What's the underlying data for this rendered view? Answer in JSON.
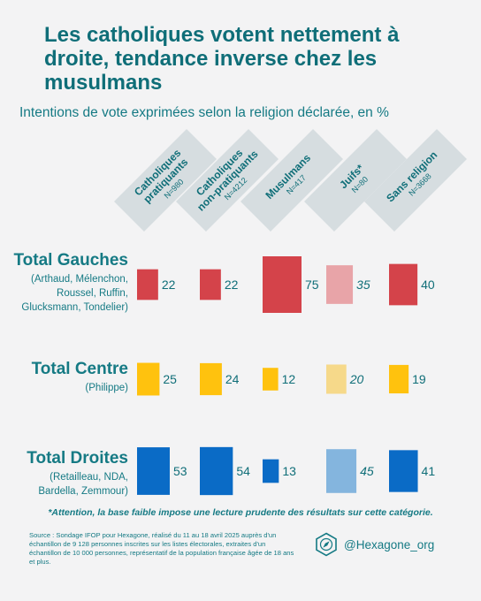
{
  "header": {
    "title": "Les catholiques votent nettement à droite, tendance inverse chez les musulmans",
    "subtitle": "Intentions de vote exprimées selon la religion déclarée, en %"
  },
  "chart_data": {
    "type": "bar",
    "title": "Les catholiques votent nettement à droite, tendance inverse chez les musulmans",
    "subtitle": "Intentions de vote exprimées selon la religion déclarée, en %",
    "xlabel": "",
    "ylabel": "",
    "categories": [
      {
        "name": "Catholiques pratiquants",
        "lines": [
          "Catholiques",
          "pratiquants"
        ],
        "n": "N=980",
        "low_base": false
      },
      {
        "name": "Catholiques non-pratiquants",
        "lines": [
          "Catholiques",
          "non-pratiquants"
        ],
        "n": "N=4212",
        "low_base": false
      },
      {
        "name": "Musulmans",
        "lines": [
          "Musulmans"
        ],
        "n": "N=417",
        "low_base": false
      },
      {
        "name": "Juifs*",
        "lines": [
          "Juifs*"
        ],
        "n": "N=80",
        "low_base": true
      },
      {
        "name": "Sans religion",
        "lines": [
          "Sans religion"
        ],
        "n": "N=3668",
        "low_base": false
      }
    ],
    "series": [
      {
        "name": "Total Gauches",
        "detail": "(Arthaud, Mélenchon, Roussel, Ruffin, Glucksmann, Tondelier)",
        "detail_lines": [
          "(Arthaud, Mélenchon,",
          "Roussel, Ruffin,",
          "Glucksmann, Tondelier)"
        ],
        "color": "#d4434a",
        "light_color": "#e8a4a8",
        "values": [
          22,
          22,
          75,
          35,
          40
        ]
      },
      {
        "name": "Total Centre",
        "detail": "(Philippe)",
        "detail_lines": [
          "(Philippe)"
        ],
        "color": "#ffc20e",
        "light_color": "#f6d98a",
        "values": [
          25,
          24,
          12,
          20,
          19
        ]
      },
      {
        "name": "Total Droites",
        "detail": "(Retailleau, NDA, Bardella, Zemmour)",
        "detail_lines": [
          "(Retailleau, NDA,",
          "Bardella, Zemmour)"
        ],
        "color": "#0a6bc6",
        "light_color": "#84b5de",
        "values": [
          53,
          54,
          13,
          45,
          41
        ]
      }
    ],
    "encoding": "bar area proportional to value",
    "legend": "none",
    "grid": false
  },
  "footer": {
    "note": "*Attention, la base faible impose une lecture prudente des résultats sur cette catégorie.",
    "source": "Source : Sondage IFOP pour Hexagone, réalisé du 11 au 18 avril 2025 auprès d'un échantillon de 9 128 personnes inscrites sur les listes électorales, extraites d'un échantillon de 10 000 personnes, représentatif de la population française âgée de 18 ans et plus.",
    "handle": "@Hexagone_org",
    "logo_icon": "compass-hexagon-icon"
  },
  "colors": {
    "accent": "#0f6e78",
    "header_box": "#d6dde0",
    "background": "#f3f3f4"
  }
}
